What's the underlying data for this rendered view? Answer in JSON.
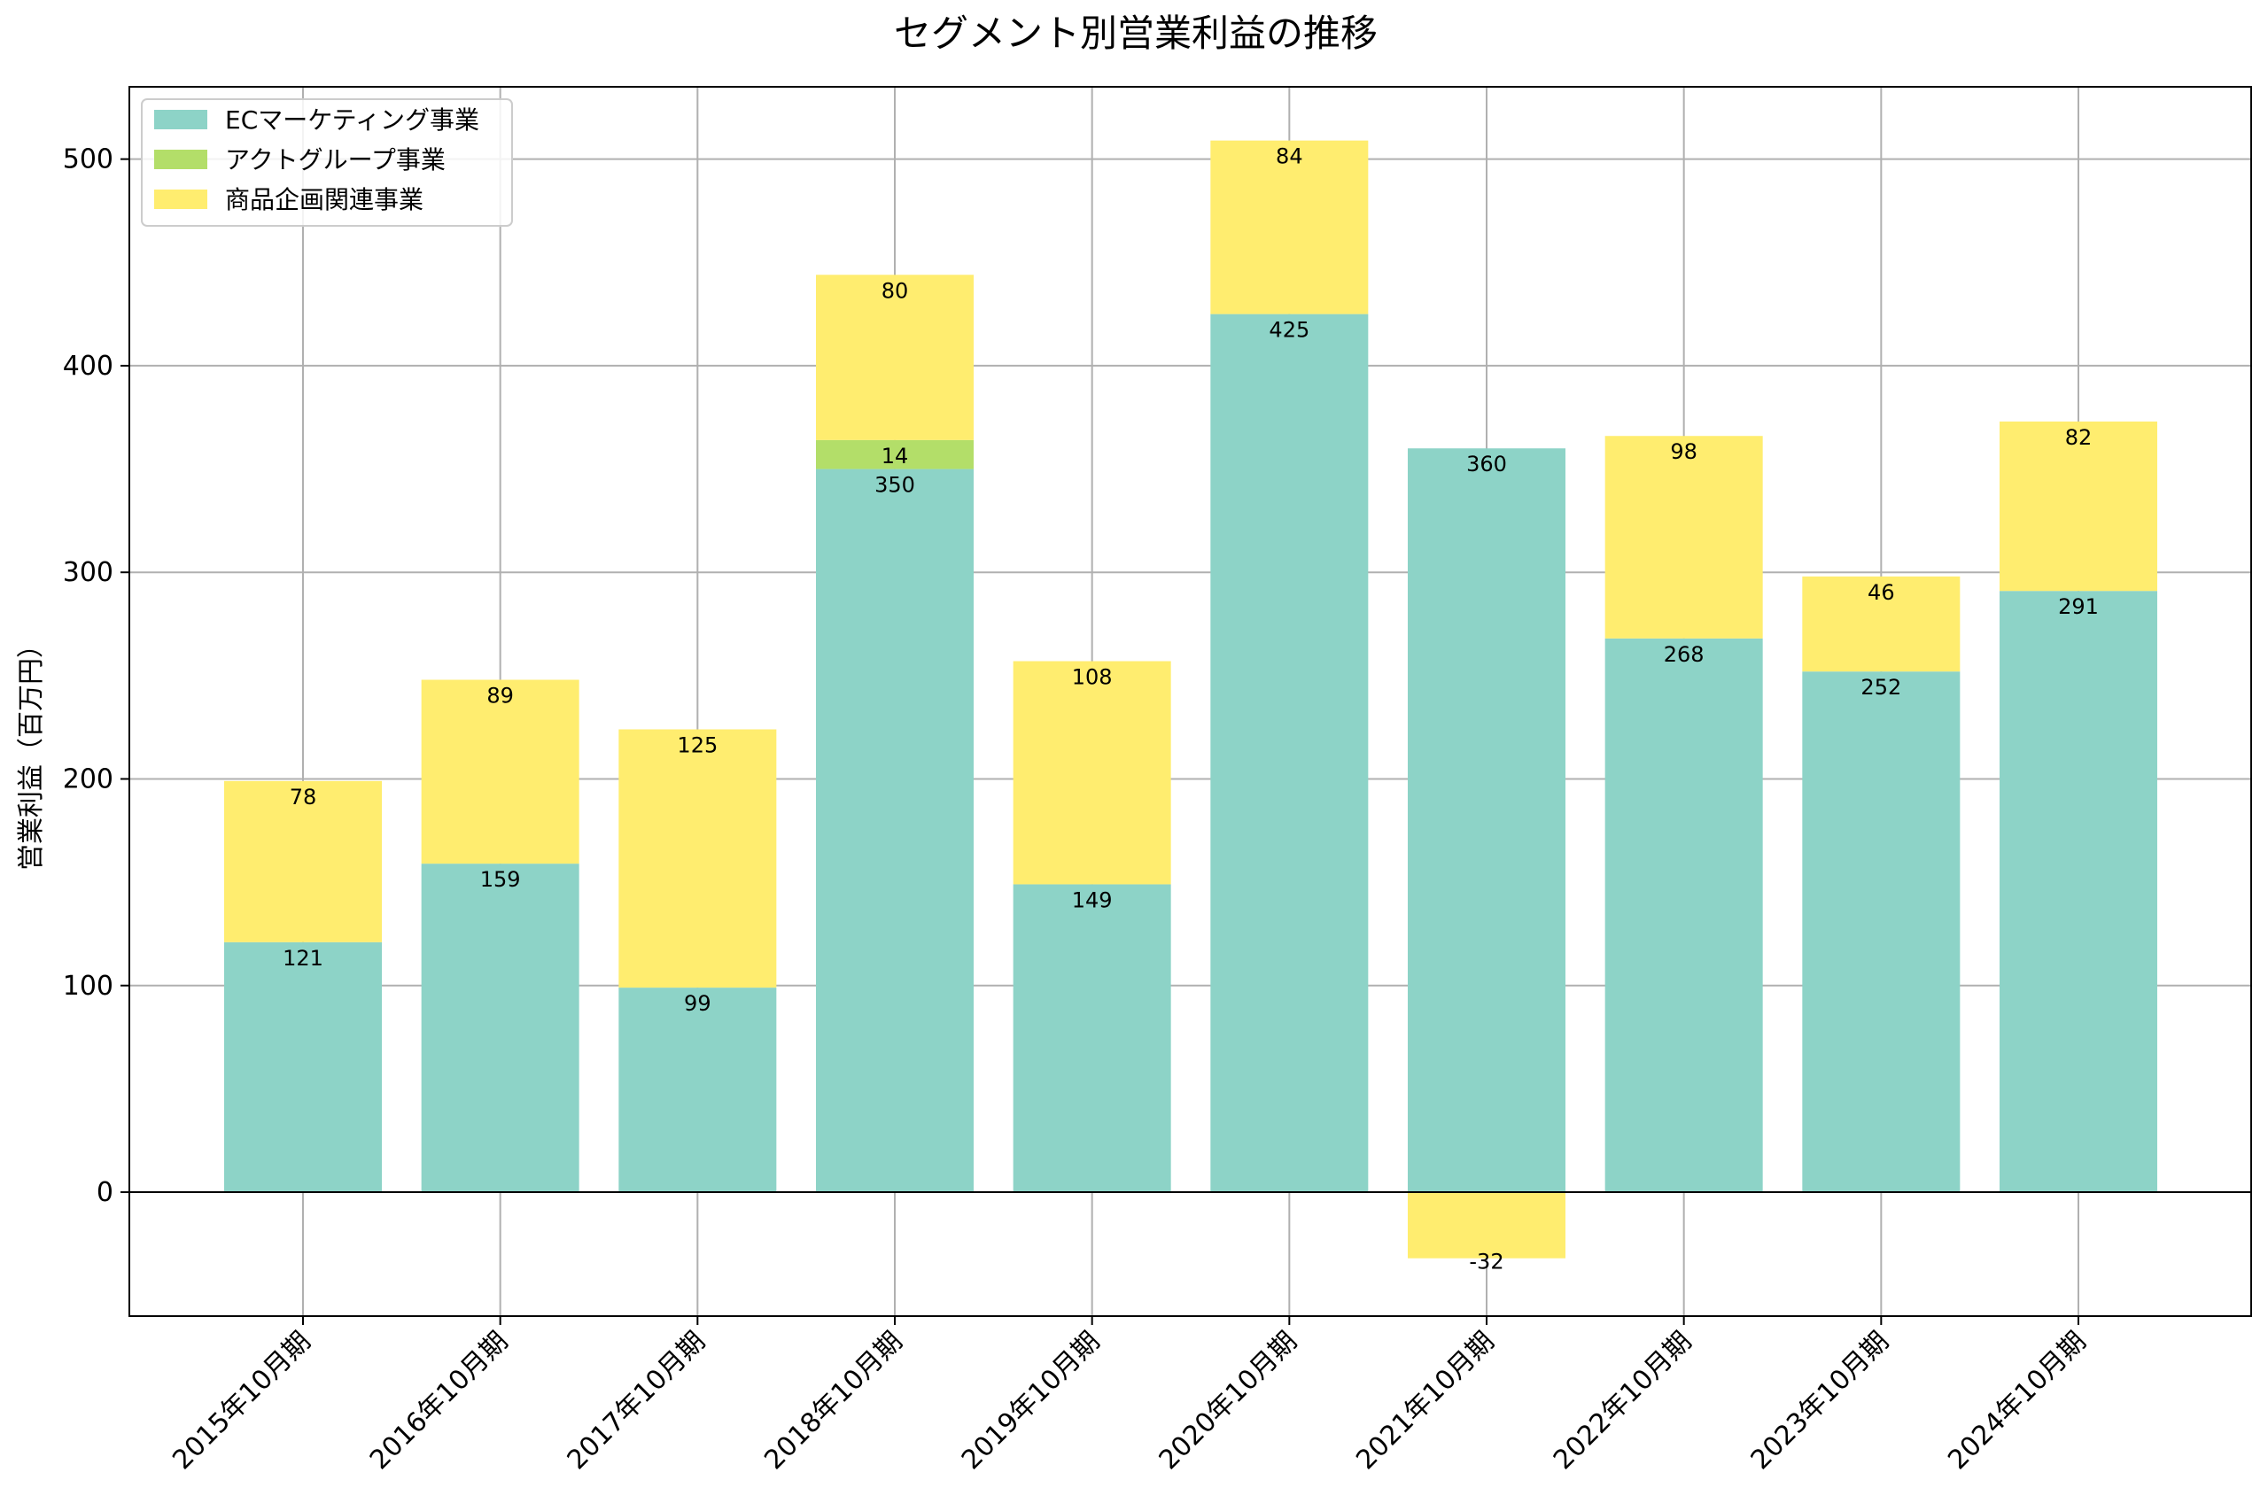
{
  "chart_data": {
    "type": "bar",
    "stacked": true,
    "title": "セグメント別営業利益の推移",
    "xlabel": "",
    "ylabel": "営業利益（百万円）",
    "ylim": [
      -60,
      535
    ],
    "yticks": [
      0,
      100,
      200,
      300,
      400,
      500
    ],
    "grid": true,
    "legend_position": "top-left",
    "categories": [
      "2015年10月期",
      "2016年10月期",
      "2017年10月期",
      "2018年10月期",
      "2019年10月期",
      "2020年10月期",
      "2021年10月期",
      "2022年10月期",
      "2023年10月期",
      "2024年10月期"
    ],
    "series": [
      {
        "name": "ECマーケティング事業",
        "color": "#8dd3c7",
        "values": [
          121,
          159,
          99,
          350,
          149,
          425,
          360,
          268,
          252,
          291
        ]
      },
      {
        "name": "アクトグループ事業",
        "color": "#b3de69",
        "values": [
          0,
          0,
          0,
          14,
          0,
          0,
          0,
          0,
          0,
          0
        ]
      },
      {
        "name": "商品企画関連事業",
        "color": "#ffed6f",
        "values": [
          78,
          89,
          125,
          80,
          108,
          84,
          -32,
          98,
          46,
          82
        ]
      }
    ]
  }
}
